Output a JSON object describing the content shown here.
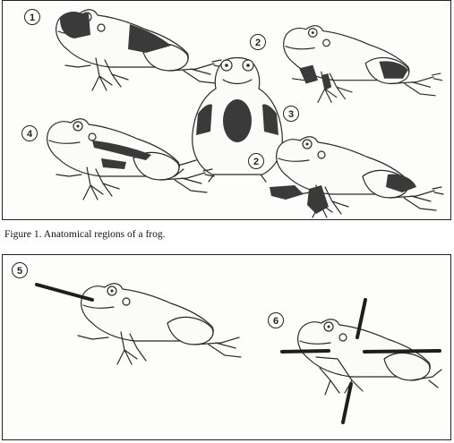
{
  "caption": "Figure 1. Anatomical regions of a frog.",
  "labels": {
    "f1": "1",
    "f2a": "2",
    "f3": "3",
    "f4": "4",
    "f2b": "2",
    "f5": "5",
    "f6": "6"
  },
  "colors": {
    "ink": "#2a2a2a",
    "shade": "#3a3a3a",
    "paper": "#fdfdfc"
  },
  "icons": [
    "frog-side-icon",
    "frog-back-icon",
    "measurement-bar-icon"
  ]
}
